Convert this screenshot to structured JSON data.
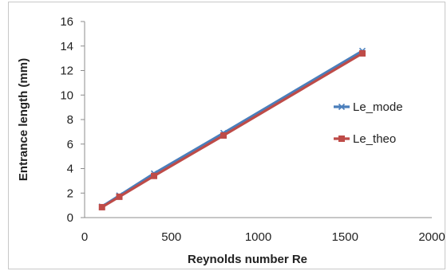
{
  "chart_data": {
    "type": "line",
    "title": "",
    "xlabel": "Reynolds number Re",
    "ylabel": "Entrance length (mm)",
    "xlim": [
      0,
      2000
    ],
    "ylim": [
      0,
      16
    ],
    "xticks": [
      0,
      500,
      1000,
      1500,
      2000
    ],
    "yticks": [
      0,
      2,
      4,
      6,
      8,
      10,
      12,
      14,
      16
    ],
    "xtick_labels": [
      "0",
      "500",
      "1000",
      "1500",
      "2000"
    ],
    "ytick_labels": [
      "0",
      "2",
      "4",
      "6",
      "8",
      "10",
      "12",
      "14",
      "16"
    ],
    "grid": false,
    "legend_position": "right",
    "series": [
      {
        "name": "Le_mode",
        "color": "#4a7ebb",
        "marker": "x",
        "x": [
          100,
          200,
          400,
          800,
          1600
        ],
        "y": [
          0.9,
          1.8,
          3.6,
          6.9,
          13.6
        ]
      },
      {
        "name": "Le_theo",
        "color": "#be4b48",
        "marker": "square",
        "x": [
          100,
          200,
          400,
          800,
          1600
        ],
        "y": [
          0.85,
          1.7,
          3.4,
          6.7,
          13.4
        ]
      }
    ]
  }
}
